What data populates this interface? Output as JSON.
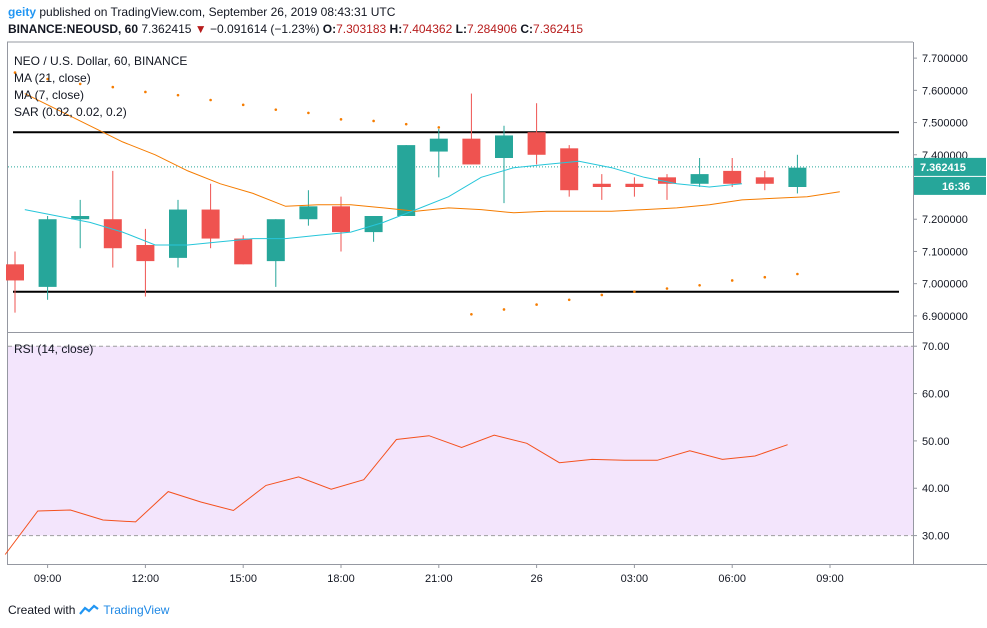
{
  "header": {
    "user": "geity",
    "published_text": "published on TradingView.com, September 26, 2019 08:43:31 UTC",
    "symbol": "BINANCE:NEOUSD, 60",
    "last": "7.362415",
    "change": "−0.091614 (−1.23%)",
    "o_label": "O:",
    "o": "7.303183",
    "h_label": "H:",
    "h": "7.404362",
    "l_label": "L:",
    "l": "7.284906",
    "c_label": "C:",
    "c": "7.362415"
  },
  "legend": {
    "title": "NEO / U.S. Dollar, 60, BINANCE",
    "ma21": "MA (21, close)",
    "ma7": "MA (7, close)",
    "sar": "SAR (0.02, 0.02, 0.2)",
    "rsi": "RSI (14, close)"
  },
  "price_tag": "7.362415",
  "time_tag": "16:36",
  "footer": {
    "created_with": "Created with",
    "brand": "TradingView"
  },
  "colors": {
    "up": "#26a69a",
    "down": "#ef5350",
    "ma21": "#f57c00",
    "ma7": "#26c6da",
    "sar": "#f57c00",
    "rsi": "#f4511e",
    "rsi_band": "#f3e5fc"
  },
  "chart_data": [
    {
      "type": "candlestick",
      "title": "NEO / U.S. Dollar, 60, BINANCE",
      "ylim": [
        6.85,
        7.75
      ],
      "y_ticks": [
        "6.900000",
        "7.000000",
        "7.100000",
        "7.200000",
        "7.300000",
        "7.400000",
        "7.500000",
        "7.600000",
        "7.700000"
      ],
      "x_ticks": [
        "09:00",
        "12:00",
        "15:00",
        "18:00",
        "21:00",
        "26",
        "03:00",
        "06:00",
        "09:00"
      ],
      "x_tick_index": [
        1,
        4,
        7,
        10,
        13,
        16,
        19,
        22,
        25
      ],
      "candles": [
        {
          "o": 7.06,
          "h": 7.1,
          "l": 6.91,
          "c": 7.01
        },
        {
          "o": 6.99,
          "h": 7.21,
          "l": 6.95,
          "c": 7.2
        },
        {
          "o": 7.2,
          "h": 7.26,
          "l": 7.11,
          "c": 7.21
        },
        {
          "o": 7.2,
          "h": 7.35,
          "l": 7.05,
          "c": 7.11
        },
        {
          "o": 7.12,
          "h": 7.17,
          "l": 6.96,
          "c": 7.07
        },
        {
          "o": 7.08,
          "h": 7.26,
          "l": 7.05,
          "c": 7.23
        },
        {
          "o": 7.23,
          "h": 7.31,
          "l": 7.11,
          "c": 7.14
        },
        {
          "o": 7.14,
          "h": 7.15,
          "l": 7.06,
          "c": 7.06
        },
        {
          "o": 7.07,
          "h": 7.2,
          "l": 6.99,
          "c": 7.2
        },
        {
          "o": 7.2,
          "h": 7.29,
          "l": 7.18,
          "c": 7.24
        },
        {
          "o": 7.24,
          "h": 7.27,
          "l": 7.1,
          "c": 7.16
        },
        {
          "o": 7.16,
          "h": 7.21,
          "l": 7.13,
          "c": 7.21
        },
        {
          "o": 7.21,
          "h": 7.43,
          "l": 7.21,
          "c": 7.43
        },
        {
          "o": 7.41,
          "h": 7.48,
          "l": 7.33,
          "c": 7.45
        },
        {
          "o": 7.45,
          "h": 7.59,
          "l": 7.37,
          "c": 7.37
        },
        {
          "o": 7.39,
          "h": 7.49,
          "l": 7.25,
          "c": 7.46
        },
        {
          "o": 7.47,
          "h": 7.56,
          "l": 7.37,
          "c": 7.4
        },
        {
          "o": 7.42,
          "h": 7.43,
          "l": 7.27,
          "c": 7.29
        },
        {
          "o": 7.31,
          "h": 7.34,
          "l": 7.26,
          "c": 7.3
        },
        {
          "o": 7.31,
          "h": 7.33,
          "l": 7.27,
          "c": 7.3
        },
        {
          "o": 7.33,
          "h": 7.34,
          "l": 7.26,
          "c": 7.31
        },
        {
          "o": 7.31,
          "h": 7.39,
          "l": 7.3,
          "c": 7.34
        },
        {
          "o": 7.35,
          "h": 7.39,
          "l": 7.3,
          "c": 7.31
        },
        {
          "o": 7.33,
          "h": 7.35,
          "l": 7.29,
          "c": 7.31
        },
        {
          "o": 7.3,
          "h": 7.4,
          "l": 7.28,
          "c": 7.36
        }
      ],
      "ma21": [
        7.59,
        7.54,
        7.49,
        7.44,
        7.4,
        7.35,
        7.31,
        7.28,
        7.24,
        7.245,
        7.245,
        7.235,
        7.225,
        7.235,
        7.23,
        7.22,
        7.225,
        7.225,
        7.225,
        7.23,
        7.235,
        7.245,
        7.26,
        7.265,
        7.27,
        7.285
      ],
      "ma21_start": 0.3,
      "ma7": [
        7.23,
        7.21,
        7.19,
        7.16,
        7.12,
        7.12,
        7.13,
        7.14,
        7.14,
        7.15,
        7.16,
        7.19,
        7.23,
        7.27,
        7.33,
        7.36,
        7.37,
        7.38,
        7.36,
        7.33,
        7.31,
        7.3,
        7.31
      ],
      "ma7_start": 0.3,
      "sar": [
        {
          "i": 0,
          "v": 7.655
        },
        {
          "i": 1,
          "v": 7.635
        },
        {
          "i": 2,
          "v": 7.62
        },
        {
          "i": 3,
          "v": 7.61
        },
        {
          "i": 4,
          "v": 7.595
        },
        {
          "i": 5,
          "v": 7.585
        },
        {
          "i": 6,
          "v": 7.57
        },
        {
          "i": 7,
          "v": 7.555
        },
        {
          "i": 8,
          "v": 7.54
        },
        {
          "i": 9,
          "v": 7.53
        },
        {
          "i": 10,
          "v": 7.51
        },
        {
          "i": 11,
          "v": 7.505
        },
        {
          "i": 12,
          "v": 7.495
        },
        {
          "i": 13,
          "v": 7.485
        },
        {
          "i": 14,
          "v": 6.905
        },
        {
          "i": 15,
          "v": 6.92
        },
        {
          "i": 16,
          "v": 6.935
        },
        {
          "i": 17,
          "v": 6.95
        },
        {
          "i": 18,
          "v": 6.965
        },
        {
          "i": 19,
          "v": 6.975
        },
        {
          "i": 20,
          "v": 6.985
        },
        {
          "i": 21,
          "v": 6.995
        },
        {
          "i": 22,
          "v": 7.01
        },
        {
          "i": 23,
          "v": 7.02
        },
        {
          "i": 24,
          "v": 7.03
        }
      ],
      "hlines": [
        7.47,
        6.975
      ],
      "last_price": 7.362415
    },
    {
      "type": "line",
      "title": "RSI (14, close)",
      "ylim": [
        24,
        73
      ],
      "y_ticks": [
        "30.00",
        "40.00",
        "50.00",
        "60.00",
        "70.00"
      ],
      "band": [
        30,
        70
      ],
      "rsi": [
        26,
        35.2,
        35.4,
        33.3,
        32.9,
        39.3,
        37.1,
        35.3,
        40.6,
        42.4,
        39.8,
        41.8,
        50.3,
        51.1,
        48.6,
        51.2,
        49.5,
        45.4,
        46.1,
        45.9,
        45.9,
        47.9,
        46.1,
        46.8,
        49.2
      ],
      "rsi_start": -0.3
    }
  ]
}
